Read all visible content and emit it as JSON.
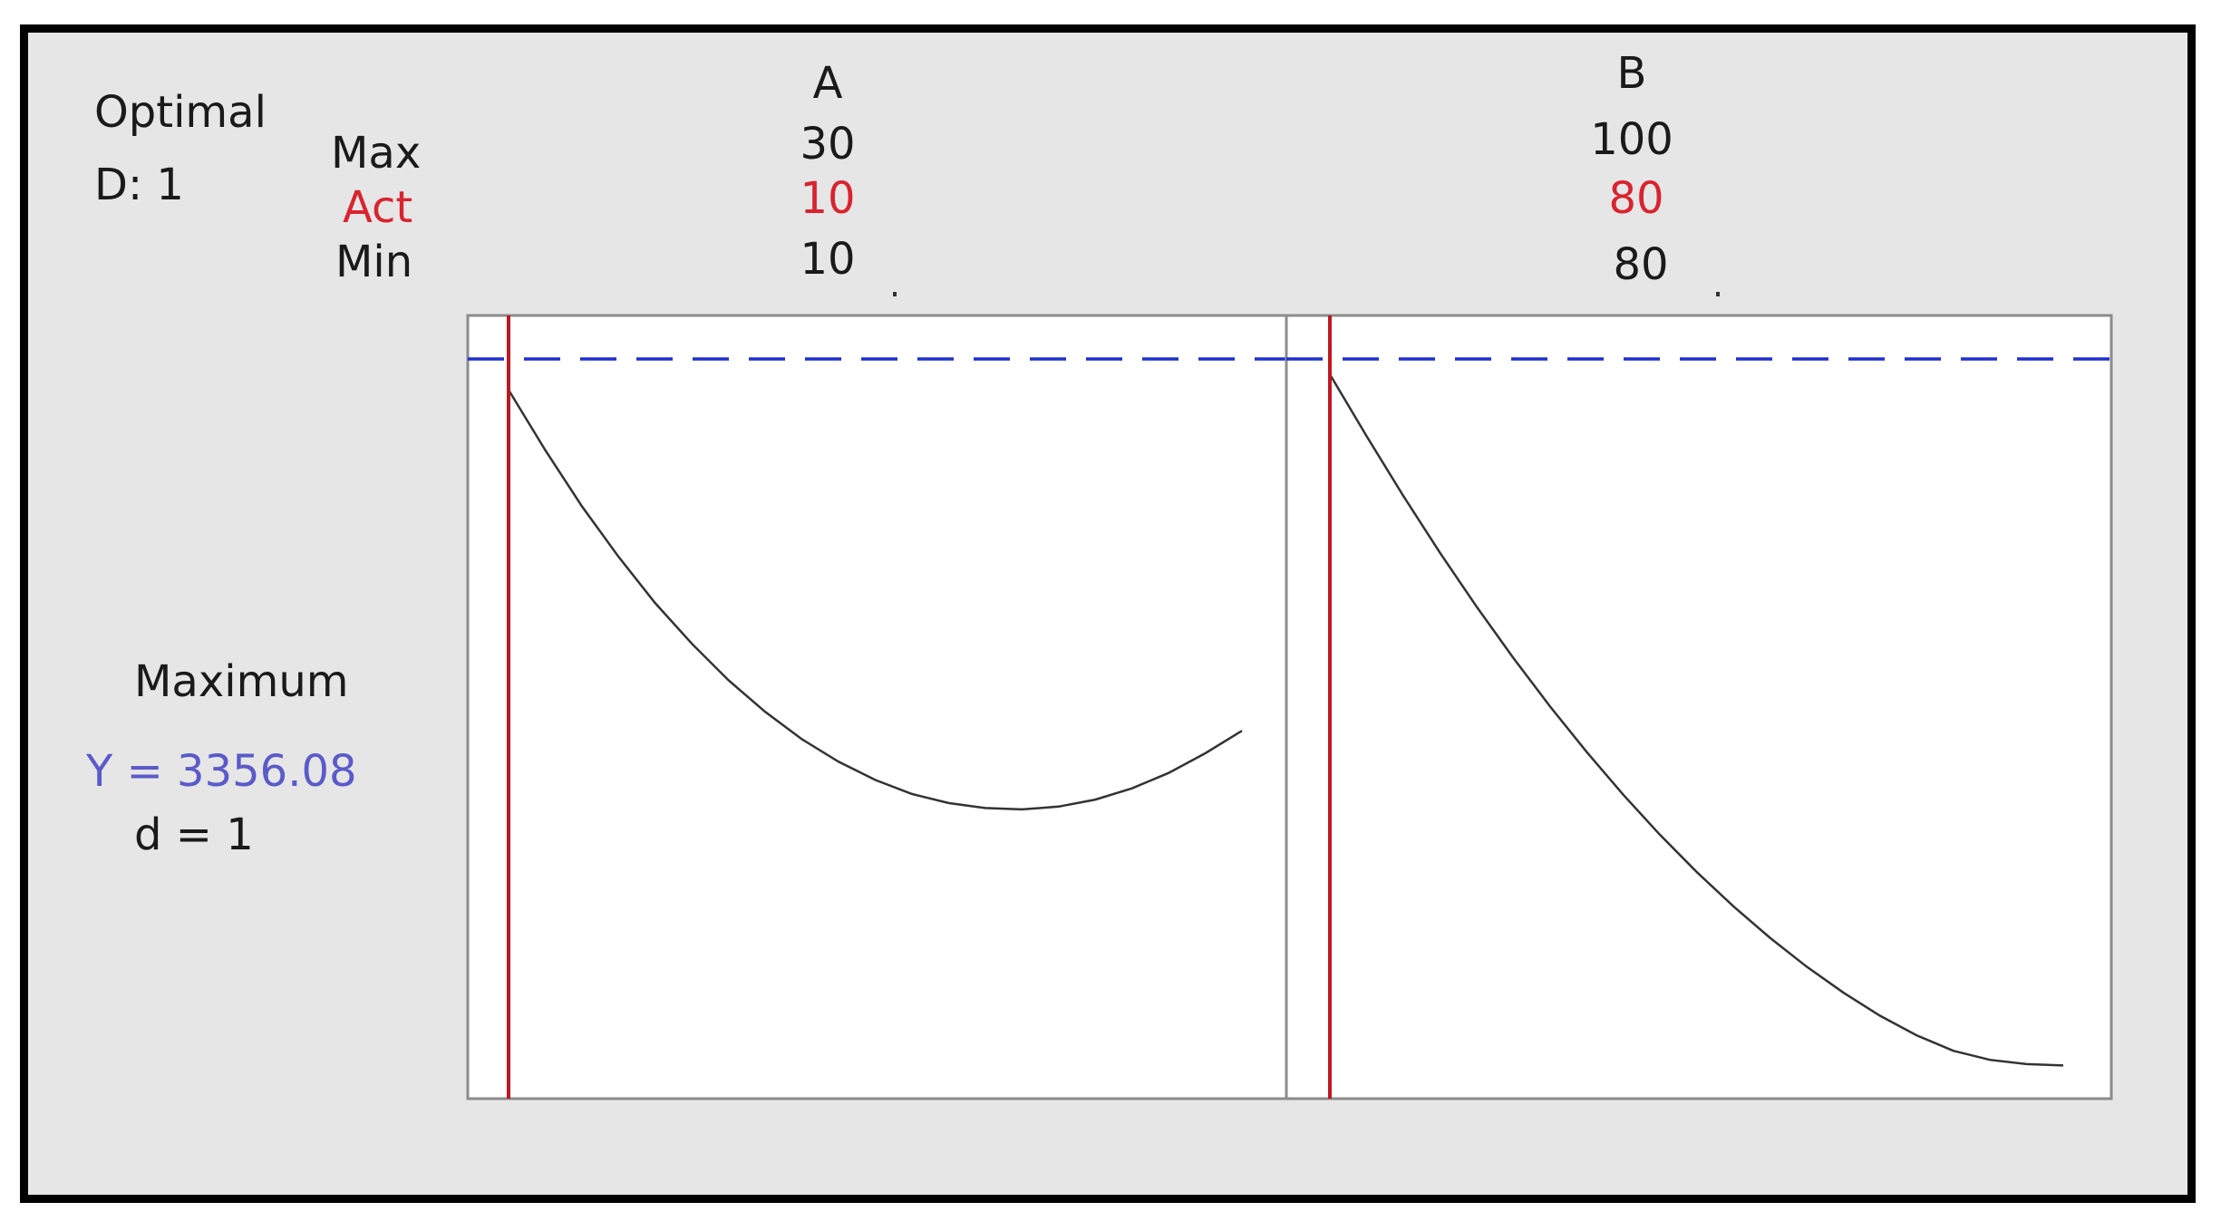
{
  "header": {
    "title_line1": "Optimal",
    "title_line2": "D: 1",
    "row_max": "Max",
    "row_act": "Act",
    "row_min": "Min"
  },
  "response": {
    "goal": "Maximum",
    "y_text": "Y = 3356.08",
    "d_text": "d = 1"
  },
  "colors": {
    "frame_bg": "#e6e6e6",
    "panel_bg": "#ffffff",
    "current_setting_line": "#c0181f",
    "optimum_line": "#1f2fd0",
    "curve": "#333333",
    "act_text": "#d9232e",
    "y_text": "#5a5aca"
  },
  "chart_data": [
    {
      "type": "line",
      "factor": "A",
      "max": "30",
      "act": "10",
      "min": "10",
      "xlim": [
        10,
        30
      ],
      "ylim": [
        2400,
        3400
      ],
      "current_x": 10,
      "optimum_y": 3356.08,
      "x": [
        10,
        11,
        12,
        13,
        14,
        15,
        16,
        17,
        18,
        19,
        20,
        21,
        22,
        23,
        24,
        25,
        26,
        27,
        28,
        29,
        30
      ],
      "y": [
        3356,
        3270,
        3190,
        3118,
        3052,
        2994,
        2942,
        2897,
        2858,
        2826,
        2800,
        2780,
        2767,
        2760,
        2758,
        2762,
        2772,
        2788,
        2810,
        2838,
        2870
      ]
    },
    {
      "type": "line",
      "factor": "B",
      "max": "100",
      "act": "80",
      "min": "80",
      "xlim": [
        80,
        100
      ],
      "ylim": [
        1400,
        3400
      ],
      "current_x": 80,
      "optimum_y": 3356.08,
      "x": [
        80,
        81,
        82,
        83,
        84,
        85,
        86,
        87,
        88,
        89,
        90,
        91,
        92,
        93,
        94,
        95,
        96,
        97,
        98,
        99,
        100
      ],
      "y": [
        3356,
        3180,
        3010,
        2848,
        2694,
        2548,
        2410,
        2280,
        2158,
        2044,
        1938,
        1840,
        1750,
        1668,
        1594,
        1528,
        1472,
        1428,
        1402,
        1390,
        1386
      ]
    }
  ]
}
